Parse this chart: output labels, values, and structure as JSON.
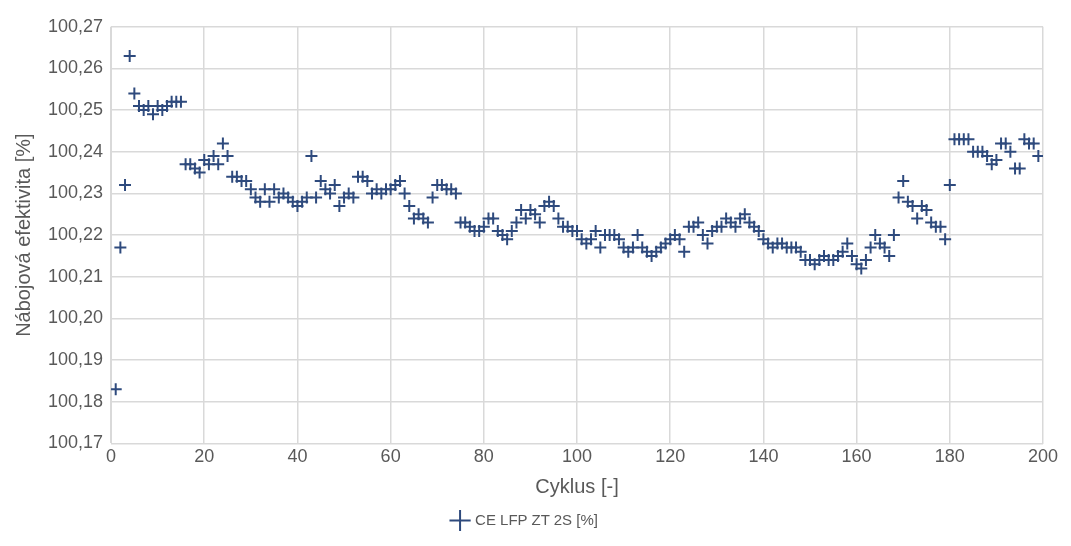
{
  "chart_data": {
    "type": "scatter",
    "xlabel": "Cyklus [-]",
    "ylabel": "Nábojová efektivita [%]",
    "xlim": [
      0,
      200
    ],
    "xticks": [
      0,
      20,
      40,
      60,
      80,
      100,
      120,
      140,
      160,
      180,
      200
    ],
    "ylim": [
      100.17,
      100.27
    ],
    "yticks": [
      {
        "value": 100.17,
        "label": "100,17"
      },
      {
        "value": 100.18,
        "label": "100,18"
      },
      {
        "value": 100.19,
        "label": "100,19"
      },
      {
        "value": 100.2,
        "label": "100,20"
      },
      {
        "value": 100.21,
        "label": "100,21"
      },
      {
        "value": 100.22,
        "label": "100,22"
      },
      {
        "value": 100.23,
        "label": "100,23"
      },
      {
        "value": 100.24,
        "label": "100,24"
      },
      {
        "value": 100.25,
        "label": "100,25"
      },
      {
        "value": 100.26,
        "label": "100,26"
      },
      {
        "value": 100.27,
        "label": "100,27"
      }
    ],
    "grid": true,
    "legend": "bottom",
    "marker": "cross",
    "x": [
      1,
      2,
      3,
      4,
      5,
      6,
      7,
      8,
      9,
      10,
      11,
      12,
      13,
      14,
      15,
      16,
      17,
      18,
      19,
      20,
      21,
      22,
      23,
      24,
      25,
      26,
      27,
      28,
      29,
      30,
      31,
      32,
      33,
      34,
      35,
      36,
      37,
      38,
      39,
      40,
      41,
      42,
      43,
      44,
      45,
      46,
      47,
      48,
      49,
      50,
      51,
      52,
      53,
      54,
      55,
      56,
      57,
      58,
      59,
      60,
      61,
      62,
      63,
      64,
      65,
      66,
      67,
      68,
      69,
      70,
      71,
      72,
      73,
      74,
      75,
      76,
      77,
      78,
      79,
      80,
      81,
      82,
      83,
      84,
      85,
      86,
      87,
      88,
      89,
      90,
      91,
      92,
      93,
      94,
      95,
      96,
      97,
      98,
      99,
      100,
      101,
      102,
      103,
      104,
      105,
      106,
      107,
      108,
      109,
      110,
      111,
      112,
      113,
      114,
      115,
      116,
      117,
      118,
      119,
      120,
      121,
      122,
      123,
      124,
      125,
      126,
      127,
      128,
      129,
      130,
      131,
      132,
      133,
      134,
      135,
      136,
      137,
      138,
      139,
      140,
      141,
      142,
      143,
      144,
      145,
      146,
      147,
      148,
      149,
      150,
      151,
      152,
      153,
      154,
      155,
      156,
      157,
      158,
      159,
      160,
      161,
      162,
      163,
      164,
      165,
      166,
      167,
      168,
      169,
      170,
      171,
      172,
      173,
      174,
      175,
      176,
      177,
      178,
      179,
      180,
      181,
      182,
      183,
      184,
      185,
      186,
      187,
      188,
      189,
      190,
      191,
      192,
      193,
      194,
      195,
      196,
      197,
      198,
      199
    ],
    "series": [
      {
        "name": "CE LFP ZT 2S [%]",
        "color": "#2e4a7d",
        "values": [
          100.183,
          100.217,
          100.232,
          100.263,
          100.254,
          100.251,
          100.25,
          100.251,
          100.249,
          100.251,
          100.25,
          100.251,
          100.252,
          100.252,
          100.252,
          100.237,
          100.237,
          100.236,
          100.235,
          100.238,
          100.237,
          100.239,
          100.237,
          100.242,
          100.239,
          100.234,
          100.234,
          100.233,
          100.233,
          100.231,
          100.229,
          100.228,
          100.231,
          100.228,
          100.231,
          100.229,
          100.23,
          100.229,
          100.228,
          100.227,
          100.228,
          100.229,
          100.239,
          100.229,
          100.233,
          100.231,
          100.23,
          100.232,
          100.227,
          100.229,
          100.23,
          100.229,
          100.234,
          100.234,
          100.233,
          100.23,
          100.231,
          100.23,
          100.231,
          100.231,
          100.232,
          100.233,
          100.23,
          100.227,
          100.224,
          100.225,
          100.224,
          100.223,
          100.229,
          100.232,
          100.232,
          100.231,
          100.231,
          100.23,
          100.223,
          100.223,
          100.222,
          100.221,
          100.221,
          100.222,
          100.224,
          100.224,
          100.221,
          100.22,
          100.219,
          100.221,
          100.223,
          100.226,
          100.224,
          100.226,
          100.225,
          100.223,
          100.227,
          100.228,
          100.227,
          100.224,
          100.222,
          100.222,
          100.221,
          100.221,
          100.219,
          100.218,
          100.219,
          100.221,
          100.217,
          100.22,
          100.22,
          100.22,
          100.219,
          100.217,
          100.216,
          100.217,
          100.22,
          100.217,
          100.216,
          100.215,
          100.216,
          100.217,
          100.218,
          100.219,
          100.22,
          100.219,
          100.216,
          100.222,
          100.222,
          100.223,
          100.22,
          100.218,
          100.221,
          100.222,
          100.222,
          100.224,
          100.223,
          100.222,
          100.224,
          100.225,
          100.223,
          100.222,
          100.221,
          100.219,
          100.218,
          100.217,
          100.218,
          100.218,
          100.217,
          100.217,
          100.217,
          100.216,
          100.214,
          100.214,
          100.213,
          100.214,
          100.215,
          100.214,
          100.214,
          100.215,
          100.216,
          100.218,
          100.215,
          100.213,
          100.212,
          100.214,
          100.217,
          100.22,
          100.218,
          100.217,
          100.215,
          100.22,
          100.229,
          100.233,
          100.228,
          100.227,
          100.224,
          100.227,
          100.226,
          100.223,
          100.222,
          100.222,
          100.219,
          100.232,
          100.243,
          100.243,
          100.243,
          100.243,
          100.24,
          100.24,
          100.24,
          100.239,
          100.237,
          100.238,
          100.242,
          100.242,
          100.24,
          100.236,
          100.236,
          100.243,
          100.242,
          100.242,
          100.239
        ]
      }
    ]
  }
}
